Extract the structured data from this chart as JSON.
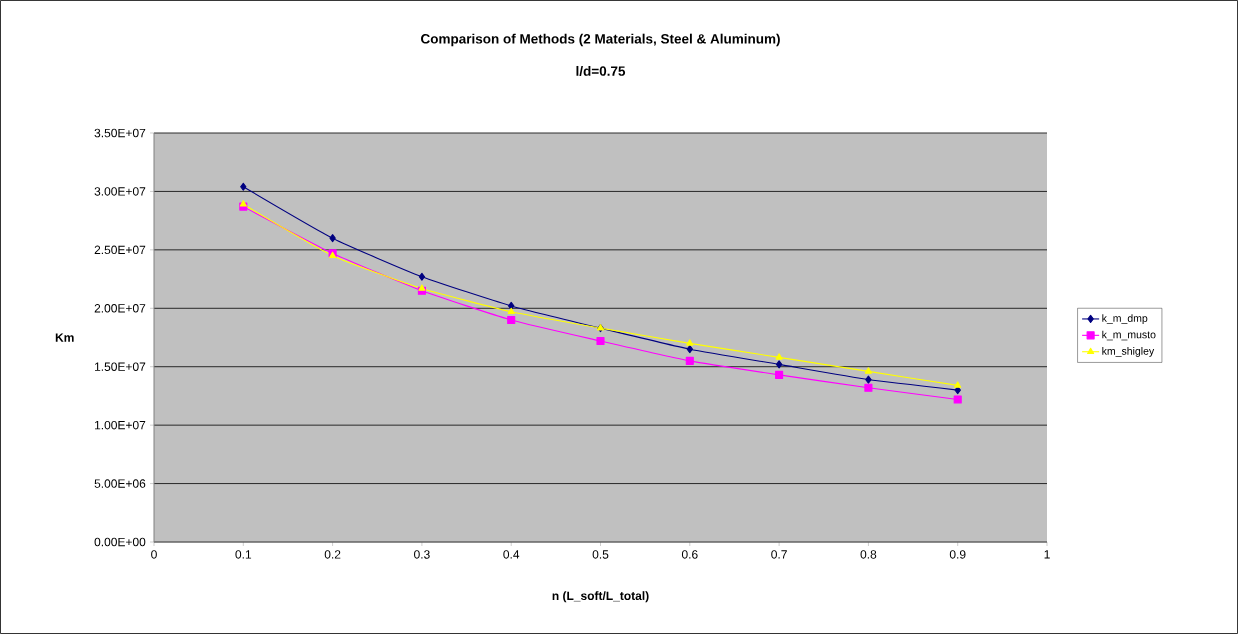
{
  "chart_data": {
    "type": "line",
    "title": "Comparison of Methods (2 Materials, Steel & Aluminum)",
    "subtitle": "l/d=0.75",
    "xlabel": "n (L_soft/L_total)",
    "ylabel": "Km",
    "x": [
      0.1,
      0.2,
      0.3,
      0.4,
      0.5,
      0.6,
      0.7,
      0.8,
      0.9
    ],
    "series": [
      {
        "name": "k_m_dmp",
        "color": "#000080",
        "marker": "diamond",
        "values": [
          30400000,
          26000000,
          22700000,
          20200000,
          18300000,
          16500000,
          15200000,
          13900000,
          13000000
        ]
      },
      {
        "name": "k_m_musto",
        "color": "#ff00ff",
        "marker": "square",
        "values": [
          28700000,
          24700000,
          21500000,
          19000000,
          17200000,
          15500000,
          14300000,
          13200000,
          12200000
        ]
      },
      {
        "name": "km_shigley",
        "color": "#ffff00",
        "marker": "triangle",
        "values": [
          28900000,
          24500000,
          21700000,
          19700000,
          18300000,
          17000000,
          15800000,
          14600000,
          13400000
        ]
      }
    ],
    "xlim": [
      0,
      1
    ],
    "xticks": [
      0,
      0.1,
      0.2,
      0.3,
      0.4,
      0.5,
      0.6,
      0.7,
      0.8,
      0.9,
      1
    ],
    "ylim": [
      0,
      35000000
    ],
    "yticks": [
      {
        "value": 0,
        "label": "0.00E+00"
      },
      {
        "value": 5000000,
        "label": "5.00E+06"
      },
      {
        "value": 10000000,
        "label": "1.00E+07"
      },
      {
        "value": 15000000,
        "label": "1.50E+07"
      },
      {
        "value": 20000000,
        "label": "2.00E+07"
      },
      {
        "value": 25000000,
        "label": "2.50E+07"
      },
      {
        "value": 30000000,
        "label": "3.00E+07"
      },
      {
        "value": 35000000,
        "label": "3.50E+07"
      }
    ],
    "grid": "y",
    "legend": "right",
    "line_style": "solid"
  }
}
